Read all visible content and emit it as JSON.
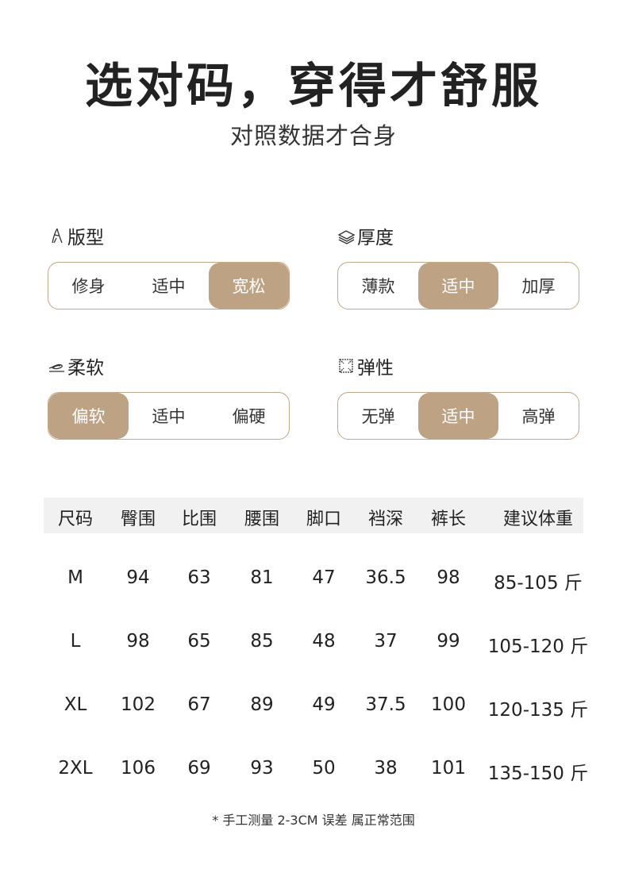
{
  "header": {
    "title": "选对码，穿得才舒服",
    "subtitle": "对照数据才合身"
  },
  "attributes": [
    {
      "label": "版型",
      "icon": "figure-icon",
      "options": [
        "修身",
        "适中",
        "宽松"
      ],
      "selected": 2
    },
    {
      "label": "厚度",
      "icon": "layers-icon",
      "options": [
        "薄款",
        "适中",
        "加厚"
      ],
      "selected": 1
    },
    {
      "label": "柔软",
      "icon": "feather-icon",
      "options": [
        "偏软",
        "适中",
        "偏硬"
      ],
      "selected": 0
    },
    {
      "label": "弹性",
      "icon": "stretch-icon",
      "options": [
        "无弹",
        "适中",
        "高弹"
      ],
      "selected": 1
    }
  ],
  "accent_color": "#bda283",
  "size_table": {
    "headers": [
      "尺码",
      "臀围",
      "比围",
      "腰围",
      "脚口",
      "裆深",
      "裤长",
      "建议体重"
    ],
    "rows": [
      [
        "M",
        "94",
        "63",
        "81",
        "47",
        "36.5",
        "98",
        "85-105 斤"
      ],
      [
        "L",
        "98",
        "65",
        "85",
        "48",
        "37",
        "99",
        "105-120 斤"
      ],
      [
        "XL",
        "102",
        "67",
        "89",
        "49",
        "37.5",
        "100",
        "120-135 斤"
      ],
      [
        "2XL",
        "106",
        "69",
        "93",
        "50",
        "38",
        "101",
        "135-150 斤"
      ]
    ]
  },
  "note": "* 手工测量 2-3CM 误差 属正常范围"
}
